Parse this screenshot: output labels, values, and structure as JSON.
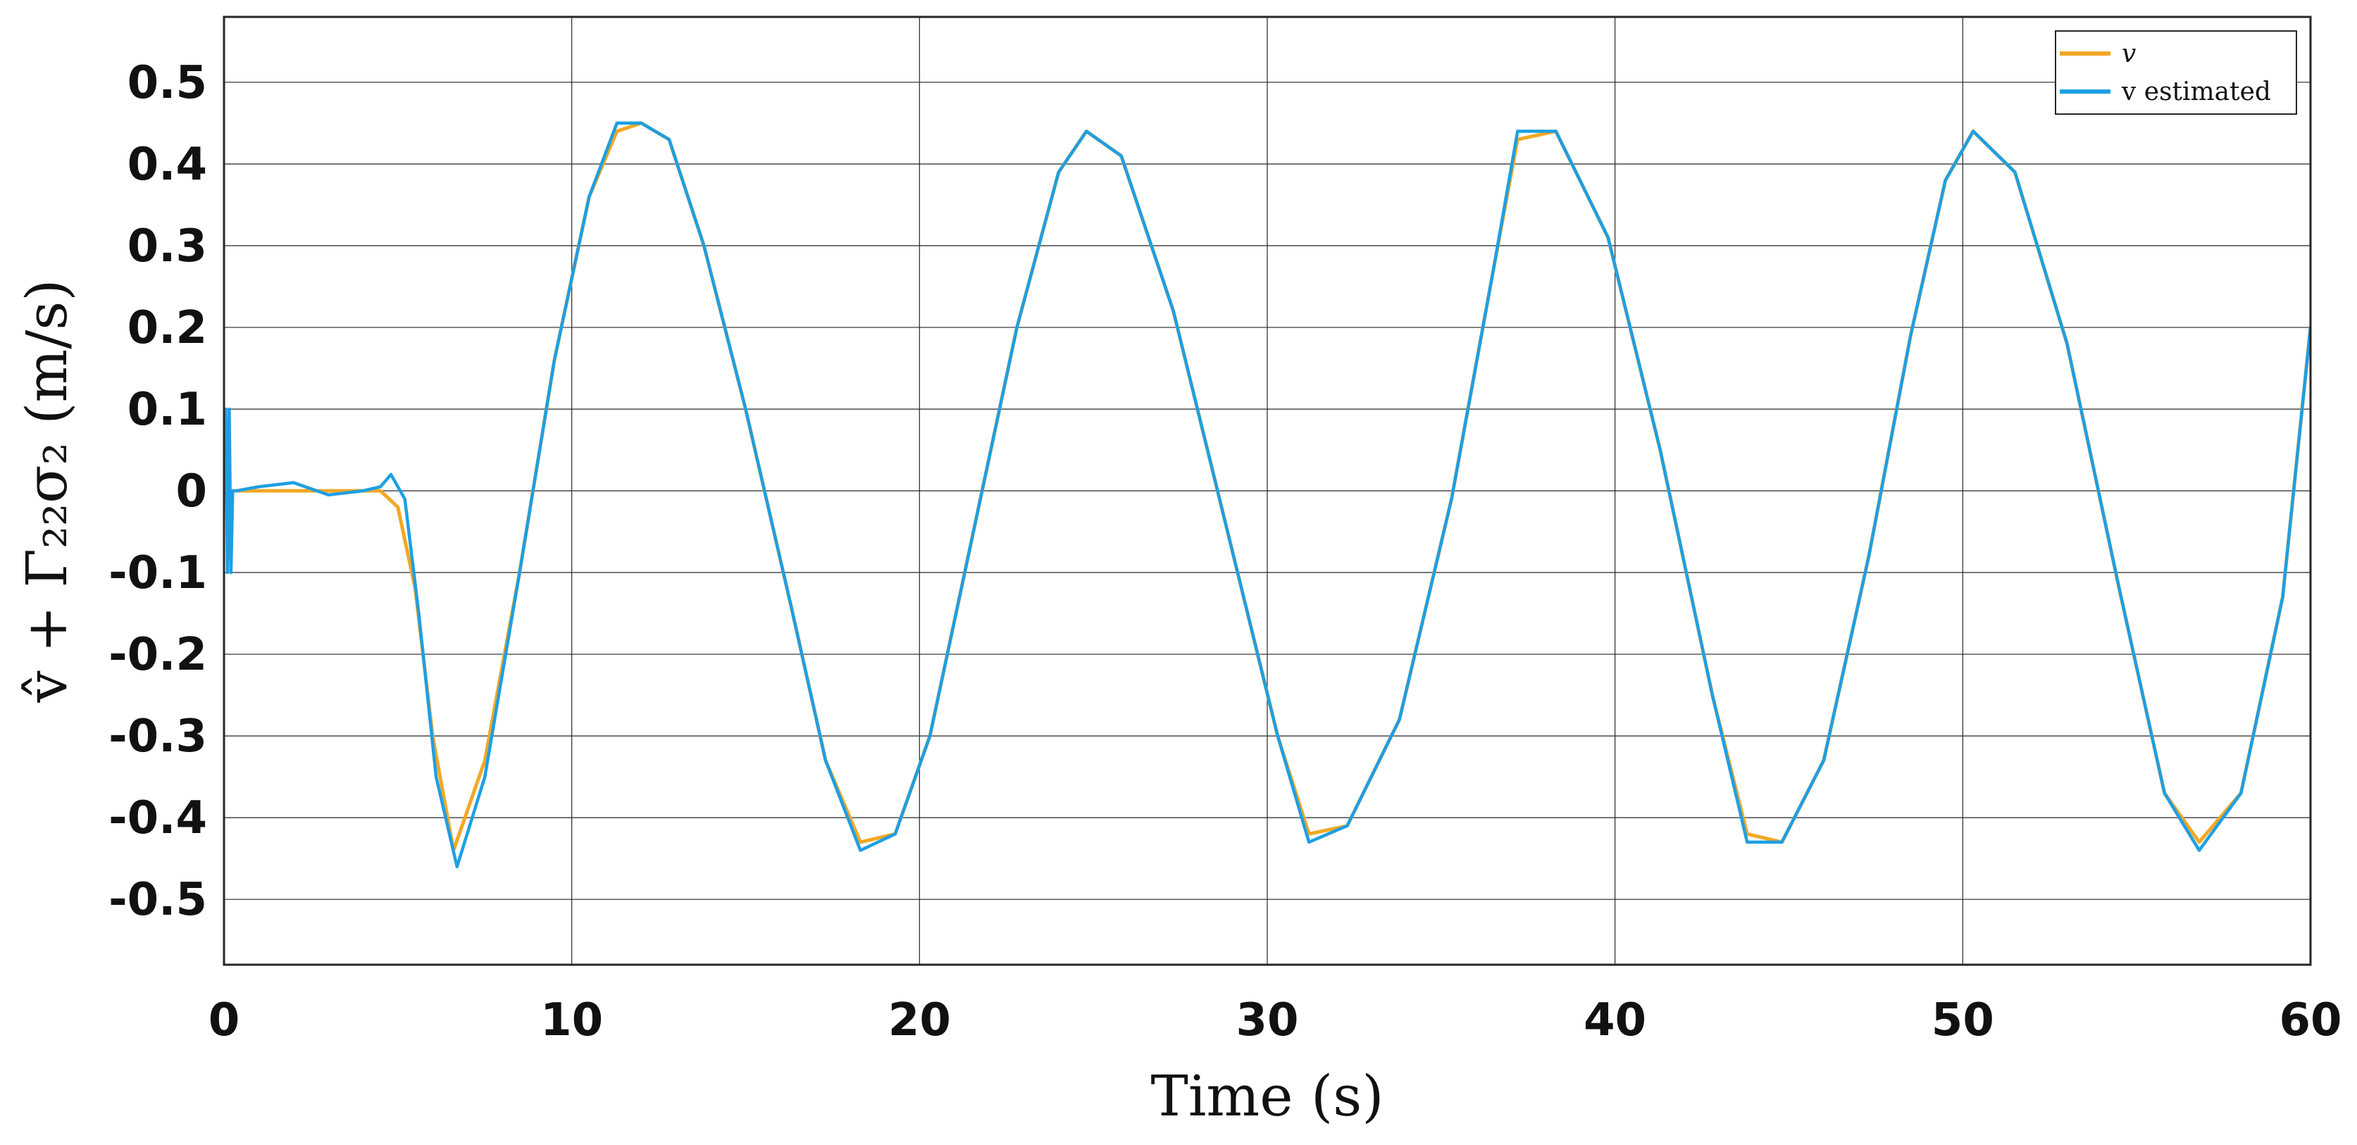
{
  "chart_data": {
    "type": "line",
    "xlabel": "Time (s)",
    "ylabel": "v̂ + Γ₂₂σ₂ (m/s)",
    "xlim": [
      0,
      60
    ],
    "ylim": [
      -0.58,
      0.58
    ],
    "grid": true,
    "legend_position": "top-right",
    "x_ticks": [
      0,
      10,
      20,
      30,
      40,
      50,
      60
    ],
    "y_ticks": [
      0.5,
      0.4,
      0.3,
      0.2,
      0.1,
      0,
      -0.1,
      -0.2,
      -0.3,
      -0.4,
      -0.5
    ],
    "x_tick_labels": [
      "0",
      "10",
      "20",
      "30",
      "40",
      "50",
      "60"
    ],
    "y_tick_labels": [
      "0.5",
      "0.4",
      "0.3",
      "0.2",
      "0.1",
      "0",
      "-0.1",
      "-0.2",
      "-0.3",
      "-0.4",
      "-0.5"
    ],
    "series": [
      {
        "name": "v",
        "color": "#F2A825",
        "x": [
          0,
          1,
          2,
          3,
          4,
          4.5,
          5,
          5.5,
          6,
          6.6,
          7.5,
          8.5,
          9.5,
          10.5,
          11.3,
          12,
          12.8,
          13.8,
          15,
          16.3,
          17.3,
          18.3,
          19.3,
          20.3,
          21.5,
          22.8,
          24,
          24.8,
          25.8,
          27.3,
          28.8,
          30.3,
          31.2,
          32.3,
          33.8,
          35.3,
          36.5,
          37.2,
          38.3,
          39.8,
          41.3,
          42.8,
          43.8,
          44.8,
          46,
          47.3,
          48.5,
          49.5,
          50.3,
          51.5,
          53,
          54.5,
          55.8,
          56.8,
          58,
          59.2,
          60
        ],
        "y": [
          0,
          0,
          0,
          0,
          0,
          0,
          -0.02,
          -0.12,
          -0.3,
          -0.44,
          -0.33,
          -0.1,
          0.16,
          0.36,
          0.44,
          0.45,
          0.43,
          0.3,
          0.1,
          -0.14,
          -0.33,
          -0.43,
          -0.42,
          -0.3,
          -0.06,
          0.2,
          0.39,
          0.44,
          0.41,
          0.22,
          -0.04,
          -0.3,
          -0.42,
          -0.41,
          -0.28,
          -0.01,
          0.27,
          0.43,
          0.44,
          0.31,
          0.05,
          -0.25,
          -0.42,
          -0.43,
          -0.33,
          -0.08,
          0.19,
          0.38,
          0.44,
          0.39,
          0.18,
          -0.12,
          -0.37,
          -0.43,
          -0.37,
          -0.13,
          0.2
        ]
      },
      {
        "name": "v estimated",
        "color": "#1E9FE3",
        "x": [
          0,
          0.05,
          0.1,
          0.15,
          0.2,
          0.25,
          0.35,
          1,
          2,
          3,
          4,
          4.5,
          4.8,
          5.2,
          5.6,
          6.1,
          6.7,
          7.5,
          8.5,
          9.5,
          10.5,
          11.3,
          12,
          12.8,
          13.8,
          15,
          16.3,
          17.3,
          18.3,
          19.3,
          20.3,
          21.5,
          22.8,
          24,
          24.8,
          25.8,
          27.3,
          28.8,
          30.3,
          31.2,
          32.3,
          33.8,
          35.3,
          36.5,
          37.2,
          38.3,
          39.8,
          41.3,
          42.8,
          43.8,
          44.8,
          46,
          47.3,
          48.5,
          49.5,
          50.3,
          51.5,
          53,
          54.5,
          55.8,
          56.8,
          58,
          59.2,
          60
        ],
        "y": [
          0,
          0.1,
          -0.1,
          0.1,
          -0.1,
          0,
          0,
          0.005,
          0.01,
          -0.005,
          0,
          0.005,
          0.02,
          -0.01,
          -0.15,
          -0.35,
          -0.46,
          -0.35,
          -0.1,
          0.16,
          0.36,
          0.45,
          0.45,
          0.43,
          0.3,
          0.1,
          -0.14,
          -0.33,
          -0.44,
          -0.42,
          -0.3,
          -0.06,
          0.2,
          0.39,
          0.44,
          0.41,
          0.22,
          -0.04,
          -0.3,
          -0.43,
          -0.41,
          -0.28,
          -0.01,
          0.27,
          0.44,
          0.44,
          0.31,
          0.05,
          -0.25,
          -0.43,
          -0.43,
          -0.33,
          -0.08,
          0.19,
          0.38,
          0.44,
          0.39,
          0.18,
          -0.12,
          -0.37,
          -0.44,
          -0.37,
          -0.13,
          0.2
        ]
      }
    ]
  }
}
